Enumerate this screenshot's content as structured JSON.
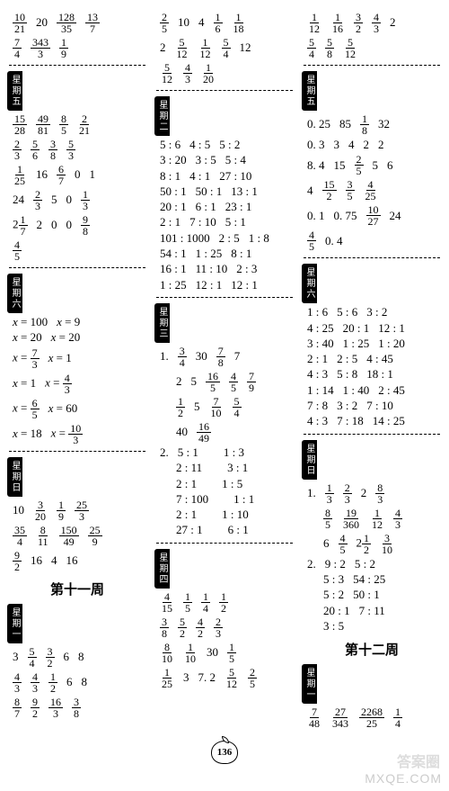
{
  "page_number": "136",
  "watermark_cn": "答案圈",
  "watermark_url": "MXQE.COM",
  "week11_title": "第十一周",
  "week12_title": "第十二周",
  "labels": {
    "wu": "星期五",
    "liu": "星期六",
    "ri": "星期日",
    "yi": "星期一",
    "er": "星期二",
    "san": "星期三",
    "si": "星期四"
  },
  "col1": {
    "top": [
      [
        "10/21",
        "20",
        "128/35",
        "13/7"
      ],
      [
        "7/4",
        "343/3",
        "1/9"
      ]
    ],
    "wu": [
      [
        "15/28",
        "49/81",
        "8/5",
        "2/21"
      ],
      [
        "2/3",
        "5/6",
        "3/8",
        "5/3"
      ],
      [
        "1/25",
        "16",
        "6/7",
        "0",
        "1"
      ],
      [
        "24",
        "2/3",
        "5",
        "0",
        "1/3"
      ],
      [
        "2 1/7",
        "2",
        "0",
        "0",
        "9/8"
      ],
      [
        "4/5"
      ]
    ],
    "liu": [
      [
        "x = 100",
        "x = 9"
      ],
      [
        "x = 20",
        "x = 20"
      ],
      [
        "x = 7/3",
        "x = 1"
      ],
      [
        "x = 1",
        "x = 4/3"
      ],
      [
        "x = 6/5",
        "x = 60"
      ],
      [
        "x = 18",
        "x = 10/3"
      ]
    ],
    "ri": [
      [
        "10",
        "3/20",
        "1/9",
        "25/3"
      ],
      [
        "35/4",
        "8/11",
        "150/49",
        "25/9"
      ],
      [
        "9/2",
        "16",
        "4",
        "16"
      ]
    ],
    "wk11_yi": [
      [
        "3",
        "5/4",
        "3/2",
        "6",
        "8"
      ],
      [
        "4/3",
        "4/3",
        "1/2",
        "6",
        "8"
      ],
      [
        "8/7",
        "9/2",
        "16/3",
        "3/8"
      ]
    ]
  },
  "col2": {
    "top": [
      [
        "2/5",
        "10",
        "4",
        "1/6",
        "1/18"
      ],
      [
        "2",
        "5/12",
        "1/12",
        "5/4",
        "12"
      ],
      [
        "5/12",
        "4/3",
        "1/20"
      ]
    ],
    "er": [
      [
        "5 : 6",
        "4 : 5",
        "5 : 2"
      ],
      [
        "3 : 20",
        "3 : 5",
        "5 : 4"
      ],
      [
        "8 : 1",
        "4 : 1",
        "27 : 10"
      ],
      [
        "50 : 1",
        "50 : 1",
        "13 : 1"
      ],
      [
        "20 : 1",
        "6 : 1",
        "23 : 1"
      ],
      [
        "2 : 1",
        "7 : 10",
        "5 : 1"
      ],
      [
        "101 : 1000",
        "2 : 5",
        "1 : 8"
      ],
      [
        "54 : 1",
        "1 : 25",
        "8 : 1"
      ],
      [
        "16 : 1",
        "11 : 10",
        "2 : 3"
      ],
      [
        "1 : 25",
        "12 : 1",
        "12 : 1"
      ]
    ],
    "san": [
      [
        "1.",
        "3/4",
        "30",
        "7/8",
        "7"
      ],
      [
        "",
        "2",
        "5",
        "16/5",
        "4/5",
        "7/9"
      ],
      [
        "",
        "1/2",
        "5",
        "7/10",
        "5/4"
      ],
      [
        "",
        "40",
        "16/49"
      ],
      [
        "2.",
        "5 : 1",
        "",
        "1 : 3"
      ],
      [
        "",
        "2 : 11",
        "",
        "3 : 1"
      ],
      [
        "",
        "2 : 1",
        "",
        "1 : 5"
      ],
      [
        "",
        "7 : 100",
        "",
        "1 : 1"
      ],
      [
        "",
        "2 : 1",
        "",
        "1 : 10"
      ],
      [
        "",
        "27 : 1",
        "",
        "6 : 1"
      ]
    ],
    "si": [
      [
        "4/15",
        "1/5",
        "1/4",
        "1/2"
      ],
      [
        "3/8",
        "5/2",
        "4/2",
        "2/3"
      ],
      [
        "8/10",
        "1/10",
        "30",
        "1/5"
      ],
      [
        "1/25",
        "3",
        "7. 2",
        "5/12",
        "2/5"
      ]
    ]
  },
  "col3": {
    "top": [
      [
        "1/12",
        "1/16",
        "3/2",
        "4/3",
        "2"
      ],
      [
        "5/4",
        "5/8",
        "5/12"
      ]
    ],
    "wu": [
      [
        "0. 25",
        "85",
        "1/8",
        "32"
      ],
      [
        "0. 3",
        "3",
        "4",
        "2",
        "2"
      ],
      [
        "8. 4",
        "15",
        "2/5",
        "5",
        "6"
      ],
      [
        "4",
        "15/2",
        "3/5",
        "4/25"
      ],
      [
        "0. 1",
        "0. 75",
        "10/27",
        "24"
      ],
      [
        "4/5",
        "0. 4"
      ]
    ],
    "liu": [
      [
        "1 : 6",
        "5 : 6",
        "3 : 2"
      ],
      [
        "4 : 25",
        "20 : 1",
        "12 : 1"
      ],
      [
        "3 : 40",
        "1 : 25",
        "1 : 20"
      ],
      [
        "2 : 1",
        "2 : 5",
        "4 : 45"
      ],
      [
        "4 : 3",
        "5 : 8",
        "18 : 1"
      ],
      [
        "1 : 14",
        "1 : 40",
        "2 : 45"
      ],
      [
        "7 : 8",
        "3 : 2",
        "7 : 10"
      ],
      [
        "4 : 3",
        "7 : 18",
        "14 : 25"
      ]
    ],
    "ri": [
      [
        "1.",
        "1/3",
        "2/3",
        "2",
        "8/3"
      ],
      [
        "",
        "8/5",
        "19/360",
        "1/12",
        "4/3"
      ],
      [
        "",
        "6",
        "4/5",
        "2 1/2",
        "3/10"
      ],
      [
        "2.",
        "9 : 2",
        "5 : 2"
      ],
      [
        "",
        "5 : 3",
        "54 : 25"
      ],
      [
        "",
        "5 : 2",
        "50 : 1"
      ],
      [
        "",
        "20 : 1",
        "7 : 11"
      ],
      [
        "",
        "3 : 5"
      ]
    ],
    "wk12_yi": [
      [
        "7/48",
        "27/343",
        "2268/25",
        "1/4"
      ]
    ]
  }
}
